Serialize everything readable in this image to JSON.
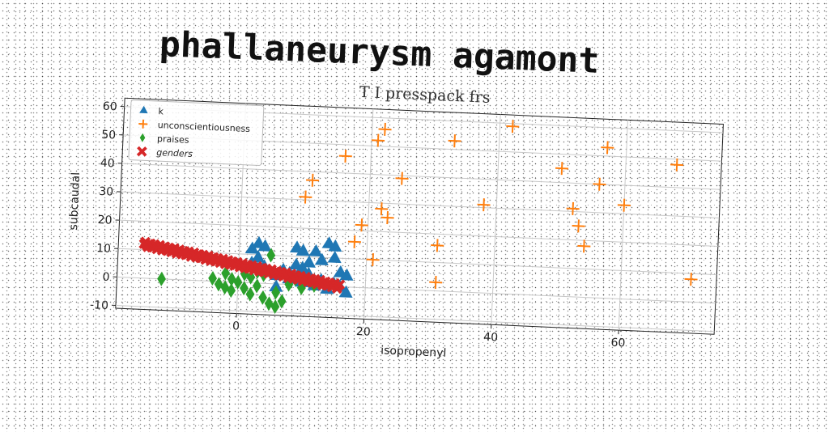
{
  "page": {
    "title": "phallaneurysm agamont"
  },
  "chart_data": {
    "type": "scatter",
    "subtitle": "T I presspack frs",
    "xlabel": "isopropenyl",
    "ylabel": "subcaudal",
    "xlim": [
      -19,
      75
    ],
    "ylim": [
      -11,
      63
    ],
    "xticks": [
      0,
      20,
      40,
      60
    ],
    "yticks": [
      -10,
      0,
      10,
      20,
      30,
      40,
      50,
      60
    ],
    "grid": true,
    "legend_position": "top-left",
    "series": [
      {
        "name": "k",
        "marker": "triangle",
        "color": "#1f77b4",
        "points": [
          [
            2,
            12
          ],
          [
            3,
            14
          ],
          [
            4,
            13
          ],
          [
            9,
            13
          ],
          [
            10,
            12
          ],
          [
            14,
            15
          ],
          [
            15,
            14
          ],
          [
            12,
            12
          ],
          [
            13,
            9
          ],
          [
            15,
            10
          ],
          [
            16,
            5
          ],
          [
            17,
            4
          ],
          [
            2,
            7
          ],
          [
            3,
            5
          ],
          [
            4,
            6
          ],
          [
            5,
            4
          ],
          [
            6,
            3
          ],
          [
            7,
            5
          ],
          [
            8,
            4
          ],
          [
            10,
            6
          ],
          [
            11,
            4
          ],
          [
            13,
            2
          ],
          [
            15,
            1
          ],
          [
            16,
            0
          ],
          [
            17,
            -2
          ],
          [
            8,
            2
          ],
          [
            6,
            -1
          ],
          [
            10,
            1
          ],
          [
            12,
            0
          ],
          [
            14,
            -1
          ],
          [
            9,
            7
          ],
          [
            3,
            9
          ],
          [
            1,
            6
          ],
          [
            11,
            8
          ]
        ]
      },
      {
        "name": "unconscientiousness",
        "marker": "plus",
        "color": "#ff7f0e",
        "points": [
          [
            42,
            59
          ],
          [
            22,
            56
          ],
          [
            21,
            52
          ],
          [
            33,
            53
          ],
          [
            57,
            53
          ],
          [
            68,
            48
          ],
          [
            16,
            46
          ],
          [
            50,
            45
          ],
          [
            56,
            40
          ],
          [
            25,
            39
          ],
          [
            11,
            37
          ],
          [
            60,
            33
          ],
          [
            10,
            31
          ],
          [
            38,
            31
          ],
          [
            52,
            31
          ],
          [
            22,
            28
          ],
          [
            23,
            25
          ],
          [
            53,
            25
          ],
          [
            19,
            22
          ],
          [
            54,
            18
          ],
          [
            18,
            16
          ],
          [
            31,
            16
          ],
          [
            21,
            10
          ],
          [
            71,
            8
          ],
          [
            31,
            3
          ]
        ]
      },
      {
        "name": "praises",
        "marker": "diamond",
        "color": "#2ca02c",
        "points": [
          [
            -12,
            0
          ],
          [
            -4,
            1
          ],
          [
            -3,
            -1
          ],
          [
            -2,
            -2
          ],
          [
            -1,
            -3
          ],
          [
            0,
            0
          ],
          [
            1,
            -2
          ],
          [
            2,
            -4
          ],
          [
            3,
            -1
          ],
          [
            4,
            -5
          ],
          [
            5,
            -7
          ],
          [
            6,
            -8
          ],
          [
            7,
            -6
          ],
          [
            2,
            2
          ],
          [
            4,
            3
          ],
          [
            5,
            10
          ],
          [
            3,
            4
          ],
          [
            1,
            3
          ],
          [
            -1,
            1
          ],
          [
            8,
            0
          ],
          [
            10,
            -1
          ],
          [
            12,
            0
          ],
          [
            6,
            -3
          ],
          [
            -2,
            3
          ],
          [
            9,
            2
          ]
        ]
      },
      {
        "name": "genders",
        "marker": "x",
        "color": "#d62728",
        "line": {
          "x0": -15,
          "x1": 16,
          "y0": 12,
          "y1": 0,
          "count": 150
        }
      }
    ]
  }
}
